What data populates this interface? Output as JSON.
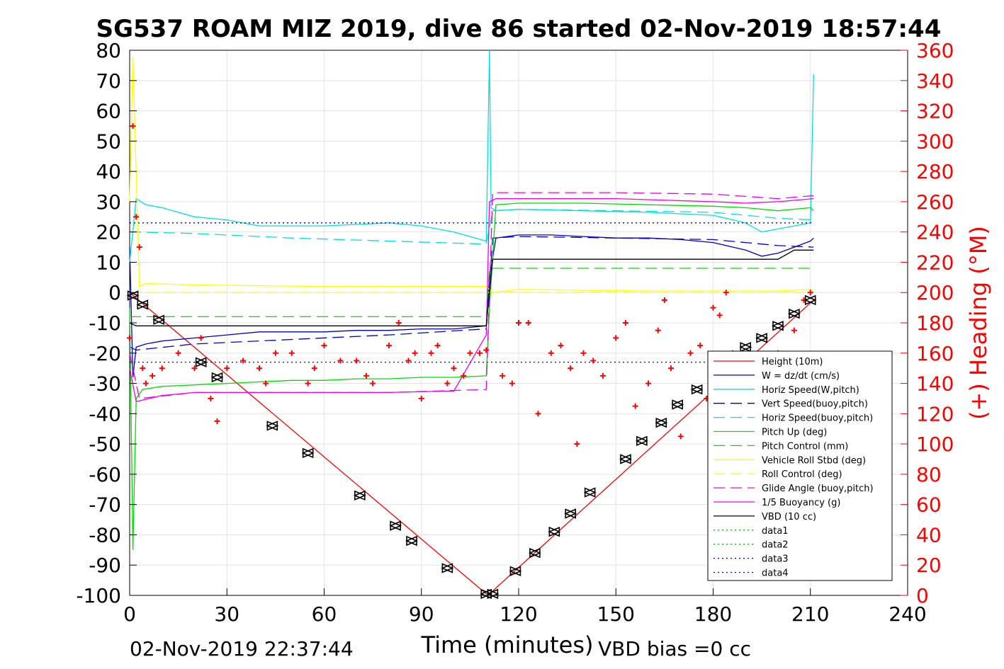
{
  "chart_data": {
    "type": "line",
    "title": "SG537 ROAM MIZ 2019, dive 86 started 02-Nov-2019 18:57:44",
    "xlabel": "Time (minutes)",
    "ylabel": "",
    "ylabel_right": "(+) Heading (°M)",
    "xlim": [
      0,
      240
    ],
    "ylim": [
      -100,
      80
    ],
    "ylim_right": [
      0,
      360
    ],
    "x_ticks": [
      0,
      30,
      60,
      90,
      120,
      150,
      180,
      210,
      240
    ],
    "y_ticks": [
      80,
      70,
      60,
      50,
      40,
      30,
      20,
      10,
      0,
      -10,
      -20,
      -30,
      -40,
      -50,
      -60,
      -70,
      -80,
      -90,
      -100
    ],
    "y_ticks_right": [
      360,
      340,
      320,
      300,
      280,
      260,
      240,
      220,
      200,
      180,
      160,
      140,
      120,
      100,
      80,
      60,
      40,
      20,
      0
    ],
    "grid": true,
    "legend_position": "bottom-right",
    "footer_left": "02-Nov-2019 22:37:44",
    "footer_right": "VBD bias =0 cc",
    "series": [
      {
        "name": "Height (10m)",
        "color": "#ff0000",
        "style": "solid",
        "x": [
          0,
          110,
          111,
          211
        ],
        "y": [
          0,
          -99.5,
          -99.5,
          -2.5
        ]
      },
      {
        "name": "W = dz/dt (cm/s)",
        "color": "#0000cc",
        "style": "solid",
        "x": [
          0,
          1,
          2,
          5,
          10,
          20,
          30,
          40,
          50,
          60,
          70,
          80,
          90,
          100,
          110,
          111,
          113,
          120,
          130,
          140,
          150,
          160,
          170,
          180,
          190,
          195,
          200,
          205,
          210,
          211
        ],
        "y": [
          15,
          -28,
          -18,
          -17,
          -16,
          -15,
          -14,
          -13,
          -13,
          -13,
          -12.5,
          -12.5,
          -12,
          -12,
          -11,
          5,
          18,
          19,
          19,
          18.5,
          18,
          18,
          17.5,
          16.5,
          14,
          12,
          13,
          15,
          17,
          18
        ]
      },
      {
        "name": "Horiz Speed(W,pitch)",
        "color": "#00e0e0",
        "style": "solid",
        "x": [
          0,
          2,
          5,
          10,
          20,
          30,
          40,
          50,
          60,
          70,
          80,
          90,
          100,
          110,
          111,
          111.5,
          113,
          120,
          140,
          160,
          180,
          190,
          195,
          200,
          205,
          210,
          211
        ],
        "y": [
          10,
          31,
          29,
          28,
          25,
          24,
          22,
          22,
          22,
          22.5,
          23,
          22,
          20,
          17,
          80,
          28,
          27,
          27.5,
          27,
          26.5,
          25.5,
          23,
          20,
          21,
          22,
          23,
          72
        ]
      },
      {
        "name": "Vert Speed(buoy,pitch)",
        "color": "#0000cc",
        "style": "dash",
        "x": [
          0,
          2,
          20,
          50,
          80,
          110,
          112,
          120,
          150,
          180,
          190,
          200,
          211
        ],
        "y": [
          -18,
          -19,
          -17,
          -15.5,
          -14,
          -12,
          18,
          18.5,
          18,
          17.5,
          16.5,
          15.5,
          15
        ]
      },
      {
        "name": "Horiz Speed(buoy,pitch)",
        "color": "#00e0e0",
        "style": "dash",
        "x": [
          0,
          2,
          20,
          50,
          80,
          110,
          112,
          120,
          150,
          180,
          190,
          200,
          211
        ],
        "y": [
          20,
          20,
          19.5,
          18,
          17,
          16,
          27,
          27.5,
          27,
          26.5,
          25.5,
          24.5,
          24
        ]
      },
      {
        "name": "Pitch Up (deg)",
        "color": "#00dd00",
        "style": "solid",
        "x": [
          0,
          1,
          2,
          4,
          10,
          20,
          30,
          40,
          50,
          60,
          70,
          80,
          90,
          100,
          110,
          111,
          113,
          120,
          140,
          160,
          180,
          190,
          200,
          210,
          211
        ],
        "y": [
          -5,
          -85,
          -35,
          -32,
          -31,
          -30.5,
          -30,
          -29.5,
          -29,
          -29,
          -28.5,
          -28.5,
          -28,
          -28,
          -27.5,
          -5,
          29,
          29.5,
          29.5,
          29,
          28.5,
          28,
          27,
          28,
          27
        ]
      },
      {
        "name": "Pitch Control (mm)",
        "color": "#00dd00",
        "style": "dash",
        "x": [
          0,
          2,
          110,
          111,
          211
        ],
        "y": [
          -8,
          -8,
          -8,
          8,
          8
        ]
      },
      {
        "name": "Vehicle Roll Stbd (deg)",
        "color": "#ffff00",
        "style": "solid",
        "x": [
          0,
          1,
          3,
          5,
          20,
          60,
          100,
          110,
          112,
          120,
          160,
          200,
          210,
          211
        ],
        "y": [
          30,
          78,
          2,
          3,
          2.5,
          2,
          2,
          2,
          0,
          1,
          0.5,
          0.5,
          1,
          0
        ]
      },
      {
        "name": "Roll Control (deg)",
        "color": "#ffff00",
        "style": "dash",
        "x": [
          0,
          211
        ],
        "y": [
          0,
          0
        ]
      },
      {
        "name": "Glide Angle (buoy,pitch)",
        "color": "#ee00ee",
        "style": "dash",
        "x": [
          0,
          3,
          20,
          50,
          80,
          110,
          112,
          120,
          150,
          180,
          200,
          211
        ],
        "y": [
          -20,
          -35,
          -33,
          -33,
          -33,
          -32,
          33,
          33,
          33,
          32.5,
          31,
          32
        ]
      },
      {
        "name": "1/5 Buoyancy (g)",
        "color": "#ee00ee",
        "style": "solid",
        "x": [
          0,
          2,
          10,
          20,
          40,
          60,
          80,
          100,
          110,
          111,
          113,
          150,
          180,
          190,
          200,
          211
        ],
        "y": [
          -25,
          -36,
          -34,
          -33,
          -33,
          -33,
          -33,
          -32.5,
          -14,
          30,
          31,
          31,
          30,
          29.5,
          30,
          31
        ]
      },
      {
        "name": "VBD (10 cc)",
        "color": "#000000",
        "style": "solid",
        "x": [
          0,
          2,
          110,
          112,
          200,
          205,
          211
        ],
        "y": [
          -10,
          -11,
          -11,
          11,
          11,
          14,
          14
        ]
      },
      {
        "name": "data1",
        "color": "#00cc00",
        "style": "dot",
        "x": [],
        "y": []
      },
      {
        "name": "data2",
        "color": "#00cc00",
        "style": "dot",
        "x": [],
        "y": []
      },
      {
        "name": "data3",
        "color": "#0000aa",
        "style": "dot",
        "x": [
          0,
          211
        ],
        "y": [
          23,
          23
        ]
      },
      {
        "name": "data4",
        "color": "#0000aa",
        "style": "dot",
        "x": [
          0,
          211
        ],
        "y": [
          -23,
          -23
        ]
      }
    ],
    "heading_axis": "right",
    "heading_marker": "+",
    "heading_color": "#ff0000",
    "heading_series": {
      "x": [
        0,
        1,
        2,
        3,
        4,
        5,
        7,
        10,
        15,
        20,
        22,
        25,
        27,
        30,
        35,
        40,
        42,
        45,
        50,
        55,
        57,
        60,
        65,
        70,
        73,
        75,
        80,
        83,
        86,
        88,
        90,
        93,
        95,
        98,
        100,
        103,
        105,
        108,
        110,
        115,
        118,
        120,
        123,
        126,
        130,
        133,
        136,
        138,
        140,
        143,
        146,
        150,
        153,
        156,
        160,
        163,
        165,
        167,
        170,
        173,
        176,
        178,
        180,
        182,
        184,
        186,
        190,
        195,
        200,
        205,
        208,
        210
      ],
      "y": [
        170,
        310,
        250,
        230,
        150,
        140,
        145,
        150,
        160,
        150,
        170,
        130,
        115,
        150,
        155,
        150,
        140,
        160,
        160,
        140,
        150,
        165,
        155,
        155,
        145,
        140,
        165,
        180,
        155,
        160,
        130,
        160,
        165,
        140,
        150,
        145,
        160,
        160,
        162,
        145,
        140,
        180,
        180,
        120,
        160,
        165,
        150,
        100,
        160,
        155,
        145,
        170,
        180,
        125,
        140,
        175,
        195,
        150,
        105,
        160,
        165,
        130,
        190,
        185,
        200,
        160,
        145,
        150,
        160,
        175,
        195,
        200
      ]
    },
    "depth_marker": "triangle-pair",
    "depth_marker_color": "#000000",
    "depth_markers": {
      "x": [
        1,
        4,
        9,
        22,
        27,
        44,
        55,
        71,
        82,
        87,
        98,
        110,
        112,
        119,
        125,
        131,
        136,
        142,
        153,
        158,
        164,
        169,
        175,
        190,
        195,
        200,
        205,
        210
      ],
      "y": [
        -1,
        -4,
        -9,
        -23,
        -28,
        -44,
        -53,
        -67,
        -77,
        -82,
        -91,
        -99.5,
        -99.5,
        -92,
        -86,
        -79,
        -73,
        -66,
        -55,
        -49,
        -43,
        -37,
        -32,
        -18,
        -15,
        -11,
        -7,
        -2.5
      ]
    }
  }
}
